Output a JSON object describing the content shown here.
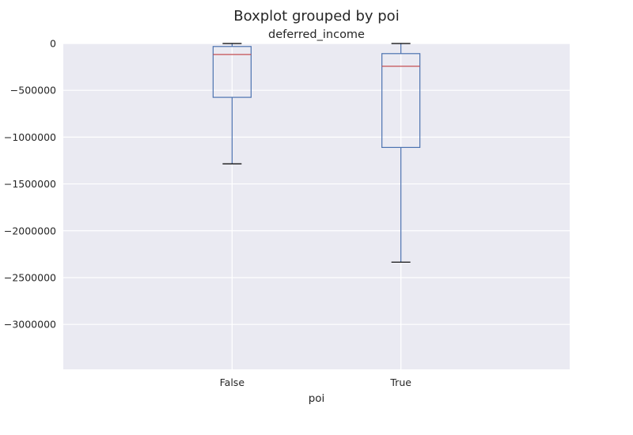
{
  "chart_data": {
    "type": "boxplot",
    "title": "Boxplot grouped by poi",
    "subtitle": "deferred_income",
    "xlabel": "poi",
    "ylabel": "",
    "categories": [
      "False",
      "True"
    ],
    "boxes": [
      {
        "category": "False",
        "whisker_low": -1285000,
        "q1": -575000,
        "median": -117000,
        "q3": -32000,
        "whisker_high": 0
      },
      {
        "category": "True",
        "whisker_low": -2335000,
        "q1": -1110000,
        "median": -243000,
        "q3": -108000,
        "whisker_high": 0
      }
    ],
    "ylim": [
      -3480000,
      0
    ],
    "yticks": [
      0,
      -500000,
      -1000000,
      -1500000,
      -2000000,
      -2500000,
      -3000000
    ],
    "ytick_labels": [
      "0",
      "−500000",
      "−1000000",
      "−1500000",
      "−2000000",
      "−2500000",
      "−3000000"
    ],
    "grid": true,
    "colors": {
      "background": "#eaeaf2",
      "grid": "#ffffff",
      "box": "#4c72b0",
      "median": "#c44e52",
      "caps": "#000000",
      "text": "#262626"
    }
  }
}
